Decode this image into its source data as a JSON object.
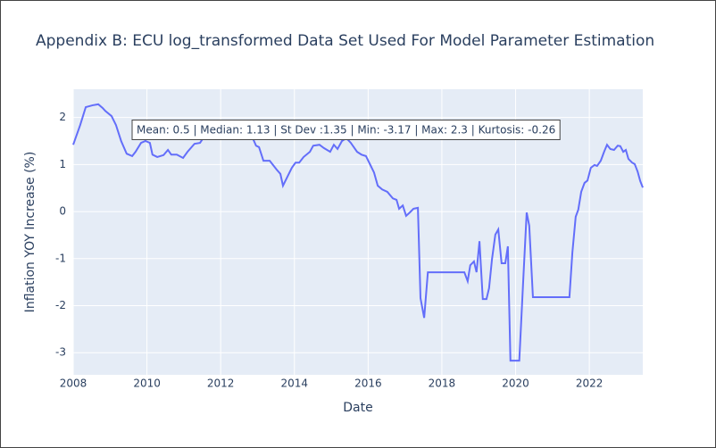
{
  "chart_data": {
    "type": "line",
    "title": "Appendix B: ECU log_transformed Data Set Used For Model Parameter Estimation",
    "x_label": "Date",
    "y_label": "Inflation YOY Increase (%)",
    "annotation": "Mean: 0.5 | Median: 1.13 | St Dev :1.35 | Min: -3.17 | Max: 2.3 | Kurtosis: -0.26",
    "x": [
      2008.0,
      2008.19,
      2008.34,
      2008.53,
      2008.68,
      2008.8,
      2008.87,
      2009.04,
      2009.16,
      2009.3,
      2009.45,
      2009.6,
      2009.69,
      2009.84,
      2009.96,
      2010.08,
      2010.15,
      2010.28,
      2010.45,
      2010.57,
      2010.66,
      2010.81,
      2010.98,
      2011.1,
      2011.29,
      2011.44,
      2011.54,
      2011.8,
      2012.2,
      2012.6,
      2012.87,
      2012.96,
      2013.04,
      2013.16,
      2013.33,
      2013.52,
      2013.62,
      2013.69,
      2013.81,
      2013.93,
      2014.03,
      2014.13,
      2014.25,
      2014.42,
      2014.51,
      2014.68,
      2014.8,
      2014.97,
      2015.07,
      2015.17,
      2015.29,
      2015.41,
      2015.53,
      2015.7,
      2015.82,
      2015.94,
      2016.06,
      2016.16,
      2016.26,
      2016.38,
      2016.52,
      2016.67,
      2016.77,
      2016.84,
      2016.94,
      2017.03,
      2017.13,
      2017.23,
      2017.35,
      2017.42,
      2017.52,
      2017.62,
      2018.12,
      2018.61,
      2018.7,
      2018.77,
      2018.87,
      2018.94,
      2019.02,
      2019.11,
      2019.21,
      2019.28,
      2019.36,
      2019.45,
      2019.53,
      2019.62,
      2019.72,
      2019.79,
      2019.86,
      2020.1,
      2020.2,
      2020.3,
      2020.37,
      2020.47,
      2021.03,
      2021.46,
      2021.54,
      2021.63,
      2021.7,
      2021.78,
      2021.87,
      2021.95,
      2022.04,
      2022.14,
      2022.21,
      2022.31,
      2022.4,
      2022.48,
      2022.57,
      2022.67,
      2022.77,
      2022.84,
      2022.92,
      2022.99,
      2023.06,
      2023.16,
      2023.23,
      2023.31,
      2023.38,
      2023.45
    ],
    "series": [
      {
        "name": "inflation",
        "color": "#636efa",
        "values": [
          1.42,
          1.84,
          2.22,
          2.26,
          2.28,
          2.2,
          2.14,
          2.03,
          1.84,
          1.5,
          1.23,
          1.18,
          1.27,
          1.46,
          1.5,
          1.46,
          1.21,
          1.16,
          1.2,
          1.31,
          1.21,
          1.21,
          1.14,
          1.27,
          1.44,
          1.46,
          1.58,
          1.7,
          1.75,
          1.7,
          1.56,
          1.4,
          1.37,
          1.08,
          1.08,
          0.89,
          0.8,
          0.55,
          0.74,
          0.93,
          1.04,
          1.04,
          1.16,
          1.27,
          1.4,
          1.42,
          1.35,
          1.27,
          1.42,
          1.33,
          1.5,
          1.56,
          1.46,
          1.27,
          1.21,
          1.18,
          0.99,
          0.83,
          0.55,
          0.47,
          0.42,
          0.28,
          0.25,
          0.06,
          0.13,
          -0.09,
          -0.02,
          0.06,
          0.08,
          -1.84,
          -2.26,
          -1.29,
          -1.29,
          -1.29,
          -1.48,
          -1.14,
          -1.06,
          -1.29,
          -0.63,
          -1.86,
          -1.86,
          -1.63,
          -1.01,
          -0.49,
          -0.38,
          -1.1,
          -1.1,
          -0.74,
          -3.17,
          -3.17,
          -1.57,
          -0.02,
          -0.3,
          -1.82,
          -1.82,
          -1.82,
          -0.87,
          -0.11,
          0.04,
          0.42,
          0.61,
          0.66,
          0.93,
          0.99,
          0.97,
          1.08,
          1.27,
          1.42,
          1.33,
          1.31,
          1.4,
          1.39,
          1.27,
          1.31,
          1.12,
          1.04,
          1.01,
          0.85,
          0.65,
          0.51
        ]
      }
    ],
    "xlim": [
      2008,
      2023.45
    ],
    "xticks": [
      2008,
      2010,
      2012,
      2014,
      2016,
      2018,
      2020,
      2022
    ],
    "ylim": [
      -3.47,
      2.6
    ],
    "yticks": [
      -3,
      -2,
      -1,
      0,
      1,
      2
    ],
    "grid": true
  }
}
